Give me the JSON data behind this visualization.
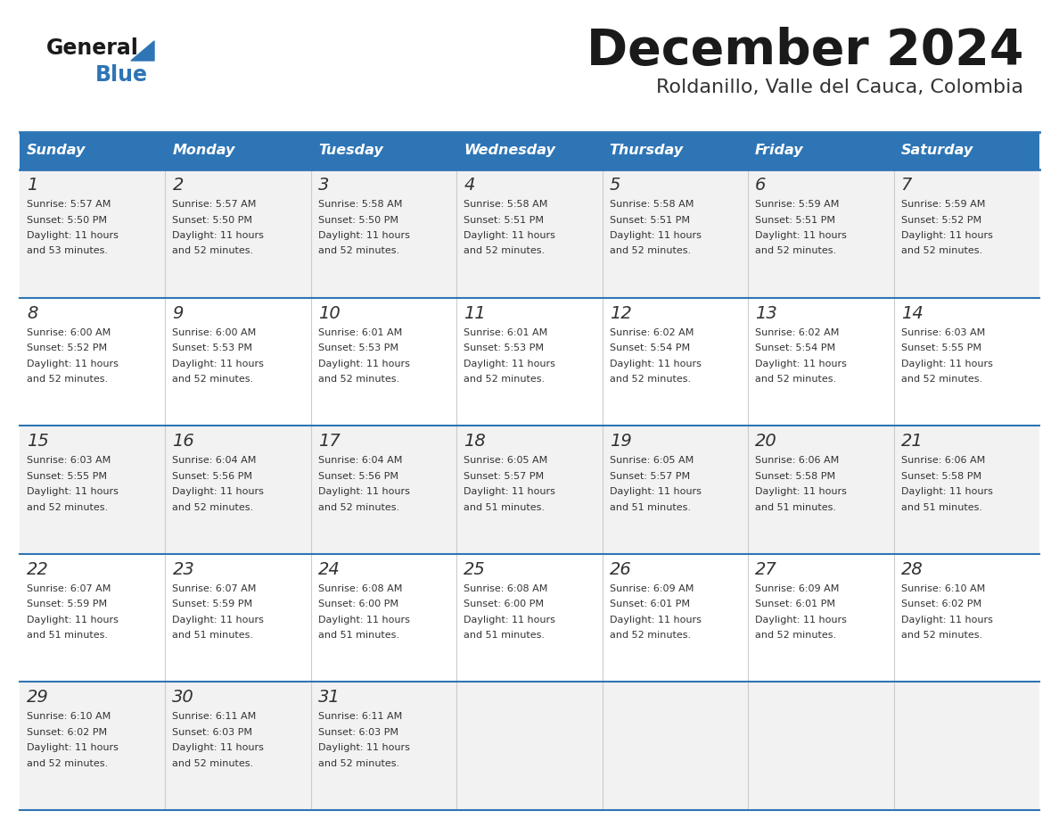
{
  "title": "December 2024",
  "subtitle": "Roldanillo, Valle del Cauca, Colombia",
  "header_color": "#2E75B6",
  "header_text_color": "#FFFFFF",
  "cell_bg_even": "#F2F2F2",
  "cell_bg_odd": "#FFFFFF",
  "border_color": "#2E75B6",
  "days_of_week": [
    "Sunday",
    "Monday",
    "Tuesday",
    "Wednesday",
    "Thursday",
    "Friday",
    "Saturday"
  ],
  "calendar_data": [
    [
      {
        "day": 1,
        "sunrise": "5:57 AM",
        "sunset": "5:50 PM",
        "daylight_hours": 11,
        "daylight_minutes": "53 minutes."
      },
      {
        "day": 2,
        "sunrise": "5:57 AM",
        "sunset": "5:50 PM",
        "daylight_hours": 11,
        "daylight_minutes": "52 minutes."
      },
      {
        "day": 3,
        "sunrise": "5:58 AM",
        "sunset": "5:50 PM",
        "daylight_hours": 11,
        "daylight_minutes": "52 minutes."
      },
      {
        "day": 4,
        "sunrise": "5:58 AM",
        "sunset": "5:51 PM",
        "daylight_hours": 11,
        "daylight_minutes": "52 minutes."
      },
      {
        "day": 5,
        "sunrise": "5:58 AM",
        "sunset": "5:51 PM",
        "daylight_hours": 11,
        "daylight_minutes": "52 minutes."
      },
      {
        "day": 6,
        "sunrise": "5:59 AM",
        "sunset": "5:51 PM",
        "daylight_hours": 11,
        "daylight_minutes": "52 minutes."
      },
      {
        "day": 7,
        "sunrise": "5:59 AM",
        "sunset": "5:52 PM",
        "daylight_hours": 11,
        "daylight_minutes": "52 minutes."
      }
    ],
    [
      {
        "day": 8,
        "sunrise": "6:00 AM",
        "sunset": "5:52 PM",
        "daylight_hours": 11,
        "daylight_minutes": "52 minutes."
      },
      {
        "day": 9,
        "sunrise": "6:00 AM",
        "sunset": "5:53 PM",
        "daylight_hours": 11,
        "daylight_minutes": "52 minutes."
      },
      {
        "day": 10,
        "sunrise": "6:01 AM",
        "sunset": "5:53 PM",
        "daylight_hours": 11,
        "daylight_minutes": "52 minutes."
      },
      {
        "day": 11,
        "sunrise": "6:01 AM",
        "sunset": "5:53 PM",
        "daylight_hours": 11,
        "daylight_minutes": "52 minutes."
      },
      {
        "day": 12,
        "sunrise": "6:02 AM",
        "sunset": "5:54 PM",
        "daylight_hours": 11,
        "daylight_minutes": "52 minutes."
      },
      {
        "day": 13,
        "sunrise": "6:02 AM",
        "sunset": "5:54 PM",
        "daylight_hours": 11,
        "daylight_minutes": "52 minutes."
      },
      {
        "day": 14,
        "sunrise": "6:03 AM",
        "sunset": "5:55 PM",
        "daylight_hours": 11,
        "daylight_minutes": "52 minutes."
      }
    ],
    [
      {
        "day": 15,
        "sunrise": "6:03 AM",
        "sunset": "5:55 PM",
        "daylight_hours": 11,
        "daylight_minutes": "52 minutes."
      },
      {
        "day": 16,
        "sunrise": "6:04 AM",
        "sunset": "5:56 PM",
        "daylight_hours": 11,
        "daylight_minutes": "52 minutes."
      },
      {
        "day": 17,
        "sunrise": "6:04 AM",
        "sunset": "5:56 PM",
        "daylight_hours": 11,
        "daylight_minutes": "52 minutes."
      },
      {
        "day": 18,
        "sunrise": "6:05 AM",
        "sunset": "5:57 PM",
        "daylight_hours": 11,
        "daylight_minutes": "51 minutes."
      },
      {
        "day": 19,
        "sunrise": "6:05 AM",
        "sunset": "5:57 PM",
        "daylight_hours": 11,
        "daylight_minutes": "51 minutes."
      },
      {
        "day": 20,
        "sunrise": "6:06 AM",
        "sunset": "5:58 PM",
        "daylight_hours": 11,
        "daylight_minutes": "51 minutes."
      },
      {
        "day": 21,
        "sunrise": "6:06 AM",
        "sunset": "5:58 PM",
        "daylight_hours": 11,
        "daylight_minutes": "51 minutes."
      }
    ],
    [
      {
        "day": 22,
        "sunrise": "6:07 AM",
        "sunset": "5:59 PM",
        "daylight_hours": 11,
        "daylight_minutes": "51 minutes."
      },
      {
        "day": 23,
        "sunrise": "6:07 AM",
        "sunset": "5:59 PM",
        "daylight_hours": 11,
        "daylight_minutes": "51 minutes."
      },
      {
        "day": 24,
        "sunrise": "6:08 AM",
        "sunset": "6:00 PM",
        "daylight_hours": 11,
        "daylight_minutes": "51 minutes."
      },
      {
        "day": 25,
        "sunrise": "6:08 AM",
        "sunset": "6:00 PM",
        "daylight_hours": 11,
        "daylight_minutes": "51 minutes."
      },
      {
        "day": 26,
        "sunrise": "6:09 AM",
        "sunset": "6:01 PM",
        "daylight_hours": 11,
        "daylight_minutes": "52 minutes."
      },
      {
        "day": 27,
        "sunrise": "6:09 AM",
        "sunset": "6:01 PM",
        "daylight_hours": 11,
        "daylight_minutes": "52 minutes."
      },
      {
        "day": 28,
        "sunrise": "6:10 AM",
        "sunset": "6:02 PM",
        "daylight_hours": 11,
        "daylight_minutes": "52 minutes."
      }
    ],
    [
      {
        "day": 29,
        "sunrise": "6:10 AM",
        "sunset": "6:02 PM",
        "daylight_hours": 11,
        "daylight_minutes": "52 minutes."
      },
      {
        "day": 30,
        "sunrise": "6:11 AM",
        "sunset": "6:03 PM",
        "daylight_hours": 11,
        "daylight_minutes": "52 minutes."
      },
      {
        "day": 31,
        "sunrise": "6:11 AM",
        "sunset": "6:03 PM",
        "daylight_hours": 11,
        "daylight_minutes": "52 minutes."
      },
      null,
      null,
      null,
      null
    ]
  ]
}
